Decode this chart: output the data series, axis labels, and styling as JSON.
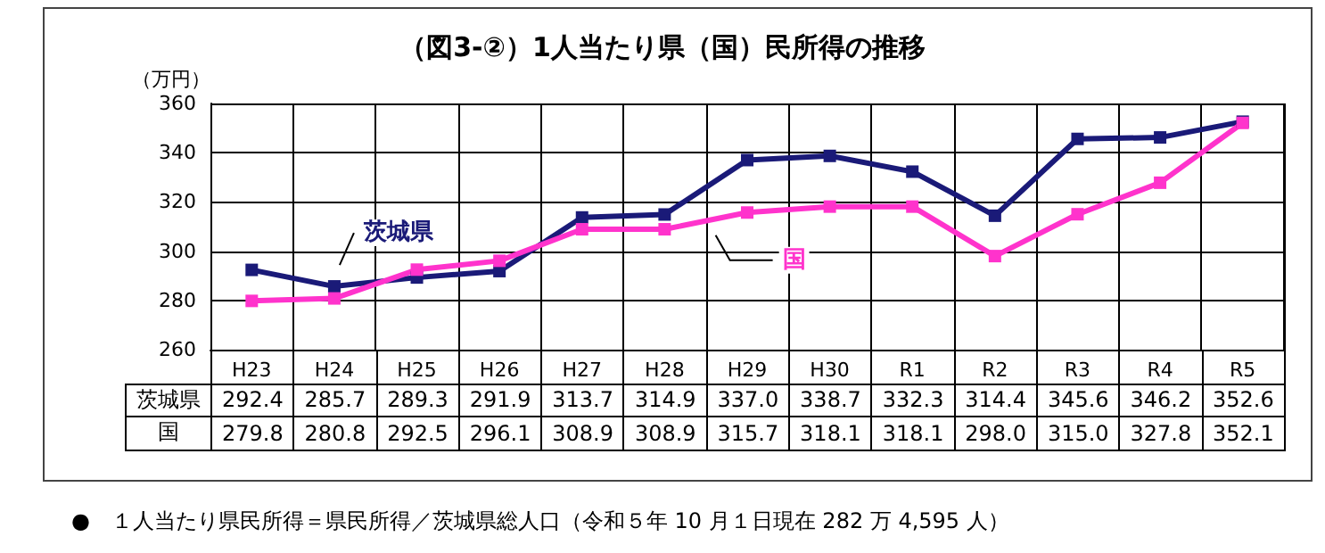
{
  "chart_data": {
    "type": "line",
    "title": "（図3-②）1人当たり県（国）民所得の推移",
    "ylabel": "（万円）",
    "categories": [
      "H23",
      "H24",
      "H25",
      "H26",
      "H27",
      "H28",
      "H29",
      "H30",
      "R1",
      "R2",
      "R3",
      "R4",
      "R5"
    ],
    "series": [
      {
        "name": "茨城県",
        "color": "#1a1a78",
        "values": [
          292.4,
          285.7,
          289.3,
          291.9,
          313.7,
          314.9,
          337.0,
          338.7,
          332.3,
          314.4,
          345.6,
          346.2,
          352.6
        ],
        "value_labels": [
          "292.4",
          "285.7",
          "289.3",
          "291.9",
          "313.7",
          "314.9",
          "337.0",
          "338.7",
          "332.3",
          "314.4",
          "345.6",
          "346.2",
          "352.6"
        ]
      },
      {
        "name": "国",
        "color": "#ff33cc",
        "values": [
          279.8,
          280.8,
          292.5,
          296.1,
          308.9,
          308.9,
          315.7,
          318.1,
          318.1,
          298.0,
          315.0,
          327.8,
          352.1
        ],
        "value_labels": [
          "279.8",
          "280.8",
          "292.5",
          "296.1",
          "308.9",
          "308.9",
          "315.7",
          "318.1",
          "318.1",
          "298.0",
          "315.0",
          "327.8",
          "352.1"
        ]
      }
    ],
    "ylim": [
      260,
      360
    ],
    "yticks": [
      260,
      280,
      300,
      320,
      340,
      360
    ],
    "grid": true,
    "legend": false,
    "marker": "square",
    "line_style": "solid",
    "annotations": [
      "●　１人当たり県民所得＝県民所得／茨城県総人口（令和５年 10 月１日現在 282 万 4,595 人）"
    ]
  }
}
